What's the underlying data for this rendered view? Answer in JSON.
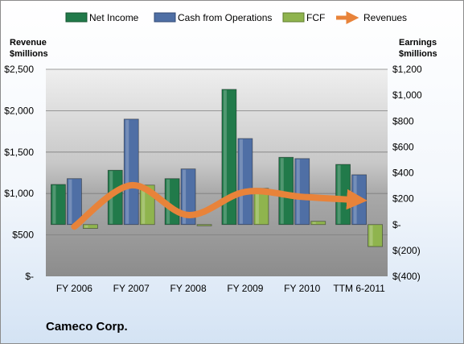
{
  "chart_data": {
    "type": "bar",
    "categories": [
      "FY 2006",
      "FY 2007",
      "FY 2008",
      "FY 2009",
      "FY 2010",
      "TTM 6-2011"
    ],
    "series": [
      {
        "name": "Net Income",
        "axis": "right",
        "values": [
          310,
          420,
          355,
          1045,
          520,
          465
        ],
        "color": "#217a4a"
      },
      {
        "name": "Cash from Operations",
        "axis": "right",
        "values": [
          355,
          815,
          430,
          665,
          510,
          385
        ],
        "color": "#4f6fa5"
      },
      {
        "name": "FCF",
        "axis": "right",
        "values": [
          -30,
          305,
          -5,
          280,
          25,
          -170
        ],
        "color": "#8fb44e"
      },
      {
        "name": "Revenues",
        "axis": "left",
        "type": "line",
        "values": [
          600,
          1100,
          740,
          1020,
          960,
          920
        ],
        "color": "#e8833a"
      }
    ],
    "left_axis": {
      "title": "Revenue $millions",
      "ylim": [
        0,
        2500
      ],
      "ticks": [
        0,
        500,
        1000,
        1500,
        2000,
        2500
      ],
      "tick_labels": [
        "$-",
        "$500",
        "$1,000",
        "$1,500",
        "$2,000",
        "$2,500"
      ]
    },
    "right_axis": {
      "title": "Earnings $millions",
      "ylim": [
        -400,
        1200
      ],
      "ticks": [
        -400,
        -200,
        0,
        200,
        400,
        600,
        800,
        1000,
        1200
      ],
      "tick_labels": [
        "$(400)",
        "$(200)",
        "$-",
        "$200",
        "$400",
        "$600",
        "$800",
        "$1,000",
        "$1,200"
      ]
    },
    "legend_position": "top",
    "grid": true
  },
  "labels": {
    "left_title_line1": "Revenue",
    "left_title_line2": "$millions",
    "right_title_line1": "Earnings",
    "right_title_line2": "$millions",
    "company": "Cameco Corp."
  }
}
